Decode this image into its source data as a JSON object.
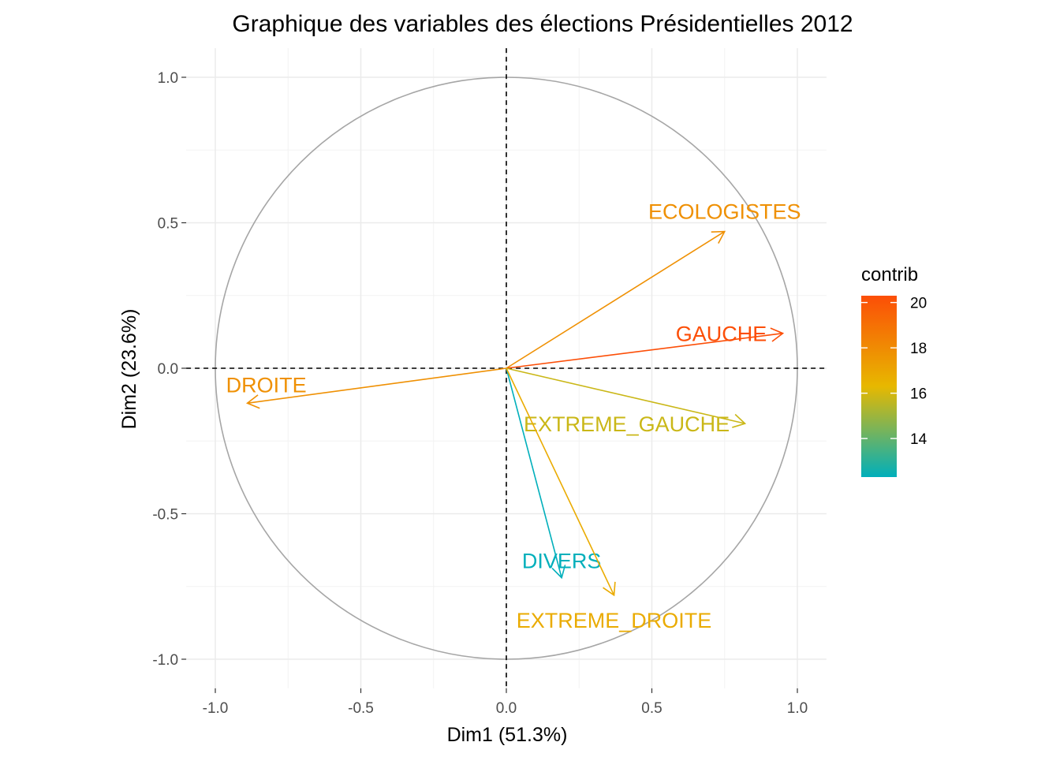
{
  "chart_data": {
    "type": "scatter",
    "subtype": "pca-variable-correlation-circle",
    "title": "Graphique des variables des élections  Présidentielles 2012",
    "xlabel": "Dim1 (51.3%)",
    "ylabel": "Dim2 (23.6%)",
    "xlim": [
      -1.1,
      1.1
    ],
    "ylim": [
      -1.1,
      1.1
    ],
    "x_ticks": [
      -1.0,
      -0.5,
      0.0,
      0.5,
      1.0
    ],
    "x_tick_labels": [
      "-1.0",
      "-0.5",
      "0.0",
      "0.5",
      "1.0"
    ],
    "y_ticks": [
      -1.0,
      -0.5,
      0.0,
      0.5,
      1.0
    ],
    "y_tick_labels": [
      "-1.0",
      "-0.5",
      "0.0",
      "0.5",
      "1.0"
    ],
    "grid": true,
    "unit_circle": true,
    "reference_lines": "dashed at x=0 and y=0",
    "variables": [
      {
        "name": "ECOLOGISTES",
        "x": 0.75,
        "y": 0.47,
        "contrib": 17.8
      },
      {
        "name": "GAUCHE",
        "x": 0.95,
        "y": 0.12,
        "contrib": 20.3
      },
      {
        "name": "DROITE",
        "x": -0.89,
        "y": -0.12,
        "contrib": 17.8
      },
      {
        "name": "EXTREME_GAUCHE",
        "x": 0.82,
        "y": -0.19,
        "contrib": 15.8
      },
      {
        "name": "DIVERS",
        "x": 0.19,
        "y": -0.72,
        "contrib": 12.3
      },
      {
        "name": "EXTREME_DROITE",
        "x": 0.37,
        "y": -0.78,
        "contrib": 16.8
      }
    ],
    "legend": {
      "title": "contrib",
      "position": "right",
      "min": 12.3,
      "max": 20.3,
      "ticks": [
        14,
        16,
        18,
        20
      ],
      "tick_labels": [
        "14",
        "16",
        "18",
        "20"
      ],
      "gradient_colors": [
        "#00AFBB",
        "#E7B800",
        "#FC4E07"
      ]
    }
  }
}
